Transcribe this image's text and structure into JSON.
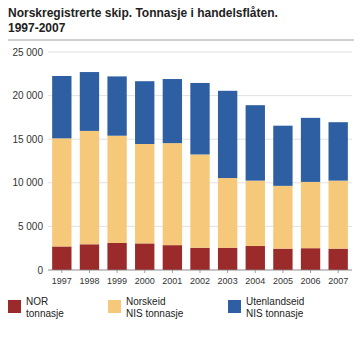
{
  "chart_data": {
    "type": "bar",
    "stacked": true,
    "title": "Norskregistrerte skip. Tonnasje i handelsflåten.",
    "subtitle": "1997-2007",
    "categories": [
      "1997",
      "1998",
      "1999",
      "2000",
      "2001",
      "2002",
      "2003",
      "2004",
      "2005",
      "2006",
      "2007"
    ],
    "series": [
      {
        "name": "NOR\ntonnasje",
        "color": "#9b2a2a",
        "values": [
          2700,
          2950,
          3100,
          3050,
          2850,
          2550,
          2550,
          2750,
          2450,
          2500,
          2450
        ]
      },
      {
        "name": "Norskeid\nNIS tonnasje",
        "color": "#f5c87a",
        "values": [
          12400,
          13000,
          12300,
          11400,
          11700,
          10700,
          8000,
          7500,
          7200,
          7600,
          7800
        ]
      },
      {
        "name": "Utenlandseid\nNIS tonnasje",
        "color": "#2e5fa3",
        "values": [
          7150,
          6750,
          6800,
          7200,
          7350,
          8200,
          10000,
          8650,
          6900,
          7350,
          6700
        ]
      }
    ],
    "ylim": [
      0,
      25000
    ],
    "yticks": [
      0,
      {
        "value": 5000,
        "label": "5 000"
      },
      {
        "value": 10000,
        "label": "10 000"
      },
      {
        "value": 15000,
        "label": "15 000"
      },
      {
        "value": 20000,
        "label": "20 000"
      },
      {
        "value": 25000,
        "label": "25 000"
      }
    ],
    "grid": true,
    "legend": "bottom"
  }
}
